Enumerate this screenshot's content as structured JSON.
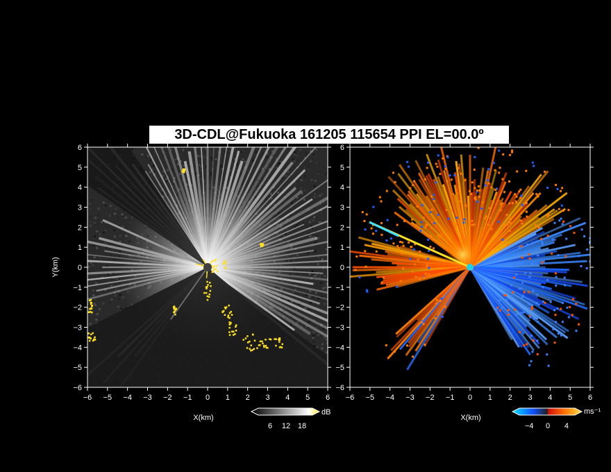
{
  "title": "3D-CDL@Fukuoka 161205 115654 PPI EL=00.0º",
  "colors": {
    "background": "#000000",
    "axis": "#ffffff",
    "echo_yellow": "#ffe020",
    "vel_positive": "#ff6a00",
    "vel_negative": "#2a78ff",
    "vel_zero": "#20d0e0"
  },
  "chart_data": [
    {
      "type": "heatmap",
      "name": "reflectivity",
      "xlabel": "X(km)",
      "ylabel": "Y(km)",
      "xlim": [
        -6,
        6
      ],
      "ylim": [
        -6,
        6
      ],
      "xticks": [
        -6,
        -5,
        -4,
        -3,
        -2,
        -1,
        0,
        1,
        2,
        3,
        4,
        5,
        6
      ],
      "yticks": [
        -6,
        -5,
        -4,
        -3,
        -2,
        -1,
        0,
        1,
        2,
        3,
        4,
        5,
        6
      ],
      "colorbar": {
        "unit": "dB",
        "ticks": [
          6,
          12,
          18
        ],
        "range": [
          0,
          24
        ]
      }
    },
    {
      "type": "heatmap",
      "name": "doppler velocity",
      "xlabel": "X(km)",
      "ylabel": "",
      "xlim": [
        -6,
        6
      ],
      "ylim": [
        -6,
        6
      ],
      "xticks": [
        -6,
        -5,
        -4,
        -3,
        -2,
        -1,
        0,
        1,
        2,
        3,
        4,
        5,
        6
      ],
      "yticks": [
        -6,
        -5,
        -4,
        -3,
        -2,
        -1,
        0,
        1,
        2,
        3,
        4,
        5,
        6
      ],
      "colorbar": {
        "unit": "ms⁻¹",
        "ticks": [
          -4,
          0,
          4
        ],
        "range": [
          -7,
          7
        ]
      }
    }
  ]
}
